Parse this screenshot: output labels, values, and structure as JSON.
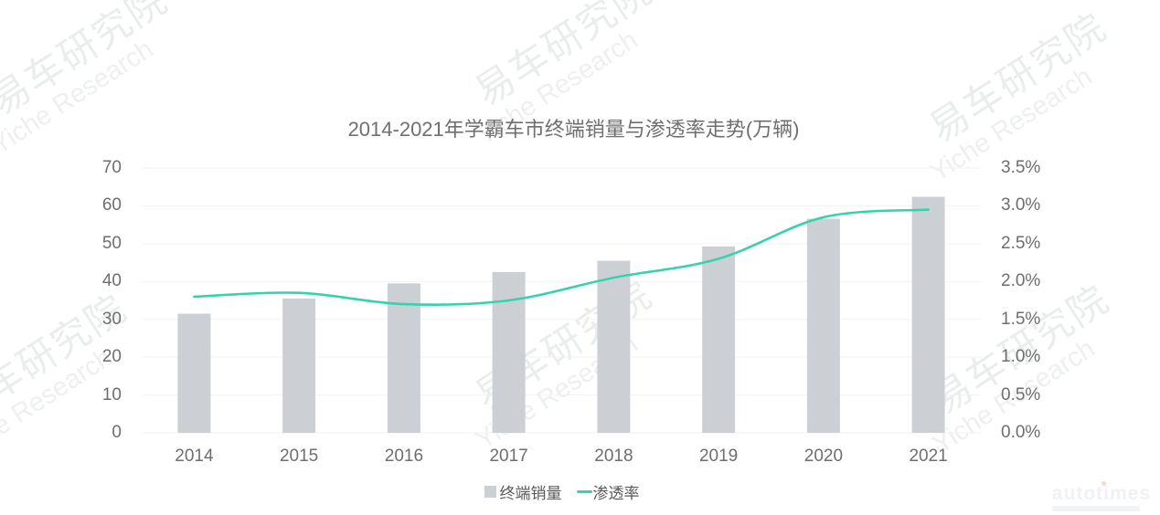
{
  "title": "2014-2021年学霸车市终端销量与渗透率走势(万辆)",
  "watermark": {
    "cn": "易车研究院",
    "en": "Yiche Research"
  },
  "footer_logo": "autotimes",
  "legend": {
    "bars": "终端销量",
    "line": "渗透率"
  },
  "colors": {
    "bar": "#ccd0d4",
    "line": "#34d3ad",
    "grid": "#f1f2f3",
    "axis_text": "#6e6e6e",
    "title_text": "#6f6f6f",
    "legend_text": "#5a5a5a",
    "watermark": "#e9edec"
  },
  "chart_data": {
    "type": "bar",
    "subtype": "dual-axis bar + smooth line",
    "title": "2014-2021年学霸车市终端销量与渗透率走势(万辆)",
    "categories": [
      "2014",
      "2015",
      "2016",
      "2017",
      "2018",
      "2019",
      "2020",
      "2021"
    ],
    "series": [
      {
        "name": "终端销量",
        "type": "bar",
        "axis": "left",
        "values": [
          31.5,
          35.5,
          39.5,
          42.5,
          45.5,
          49.3,
          56.6,
          62.4
        ]
      },
      {
        "name": "渗透率",
        "type": "line",
        "axis": "right",
        "unit": "%",
        "values": [
          1.8,
          1.85,
          1.7,
          1.75,
          2.05,
          2.3,
          2.85,
          2.95
        ]
      }
    ],
    "left_axis": {
      "min": 0,
      "max": 70,
      "step": 10,
      "ticks": [
        "0",
        "10",
        "20",
        "30",
        "40",
        "50",
        "60",
        "70"
      ]
    },
    "right_axis": {
      "min": 0,
      "max": 3.5,
      "step": 0.5,
      "ticks": [
        "0.0%",
        "0.5%",
        "1.0%",
        "1.5%",
        "2.0%",
        "2.5%",
        "3.0%",
        "3.5%"
      ]
    },
    "grid": true,
    "legend_position": "bottom"
  }
}
